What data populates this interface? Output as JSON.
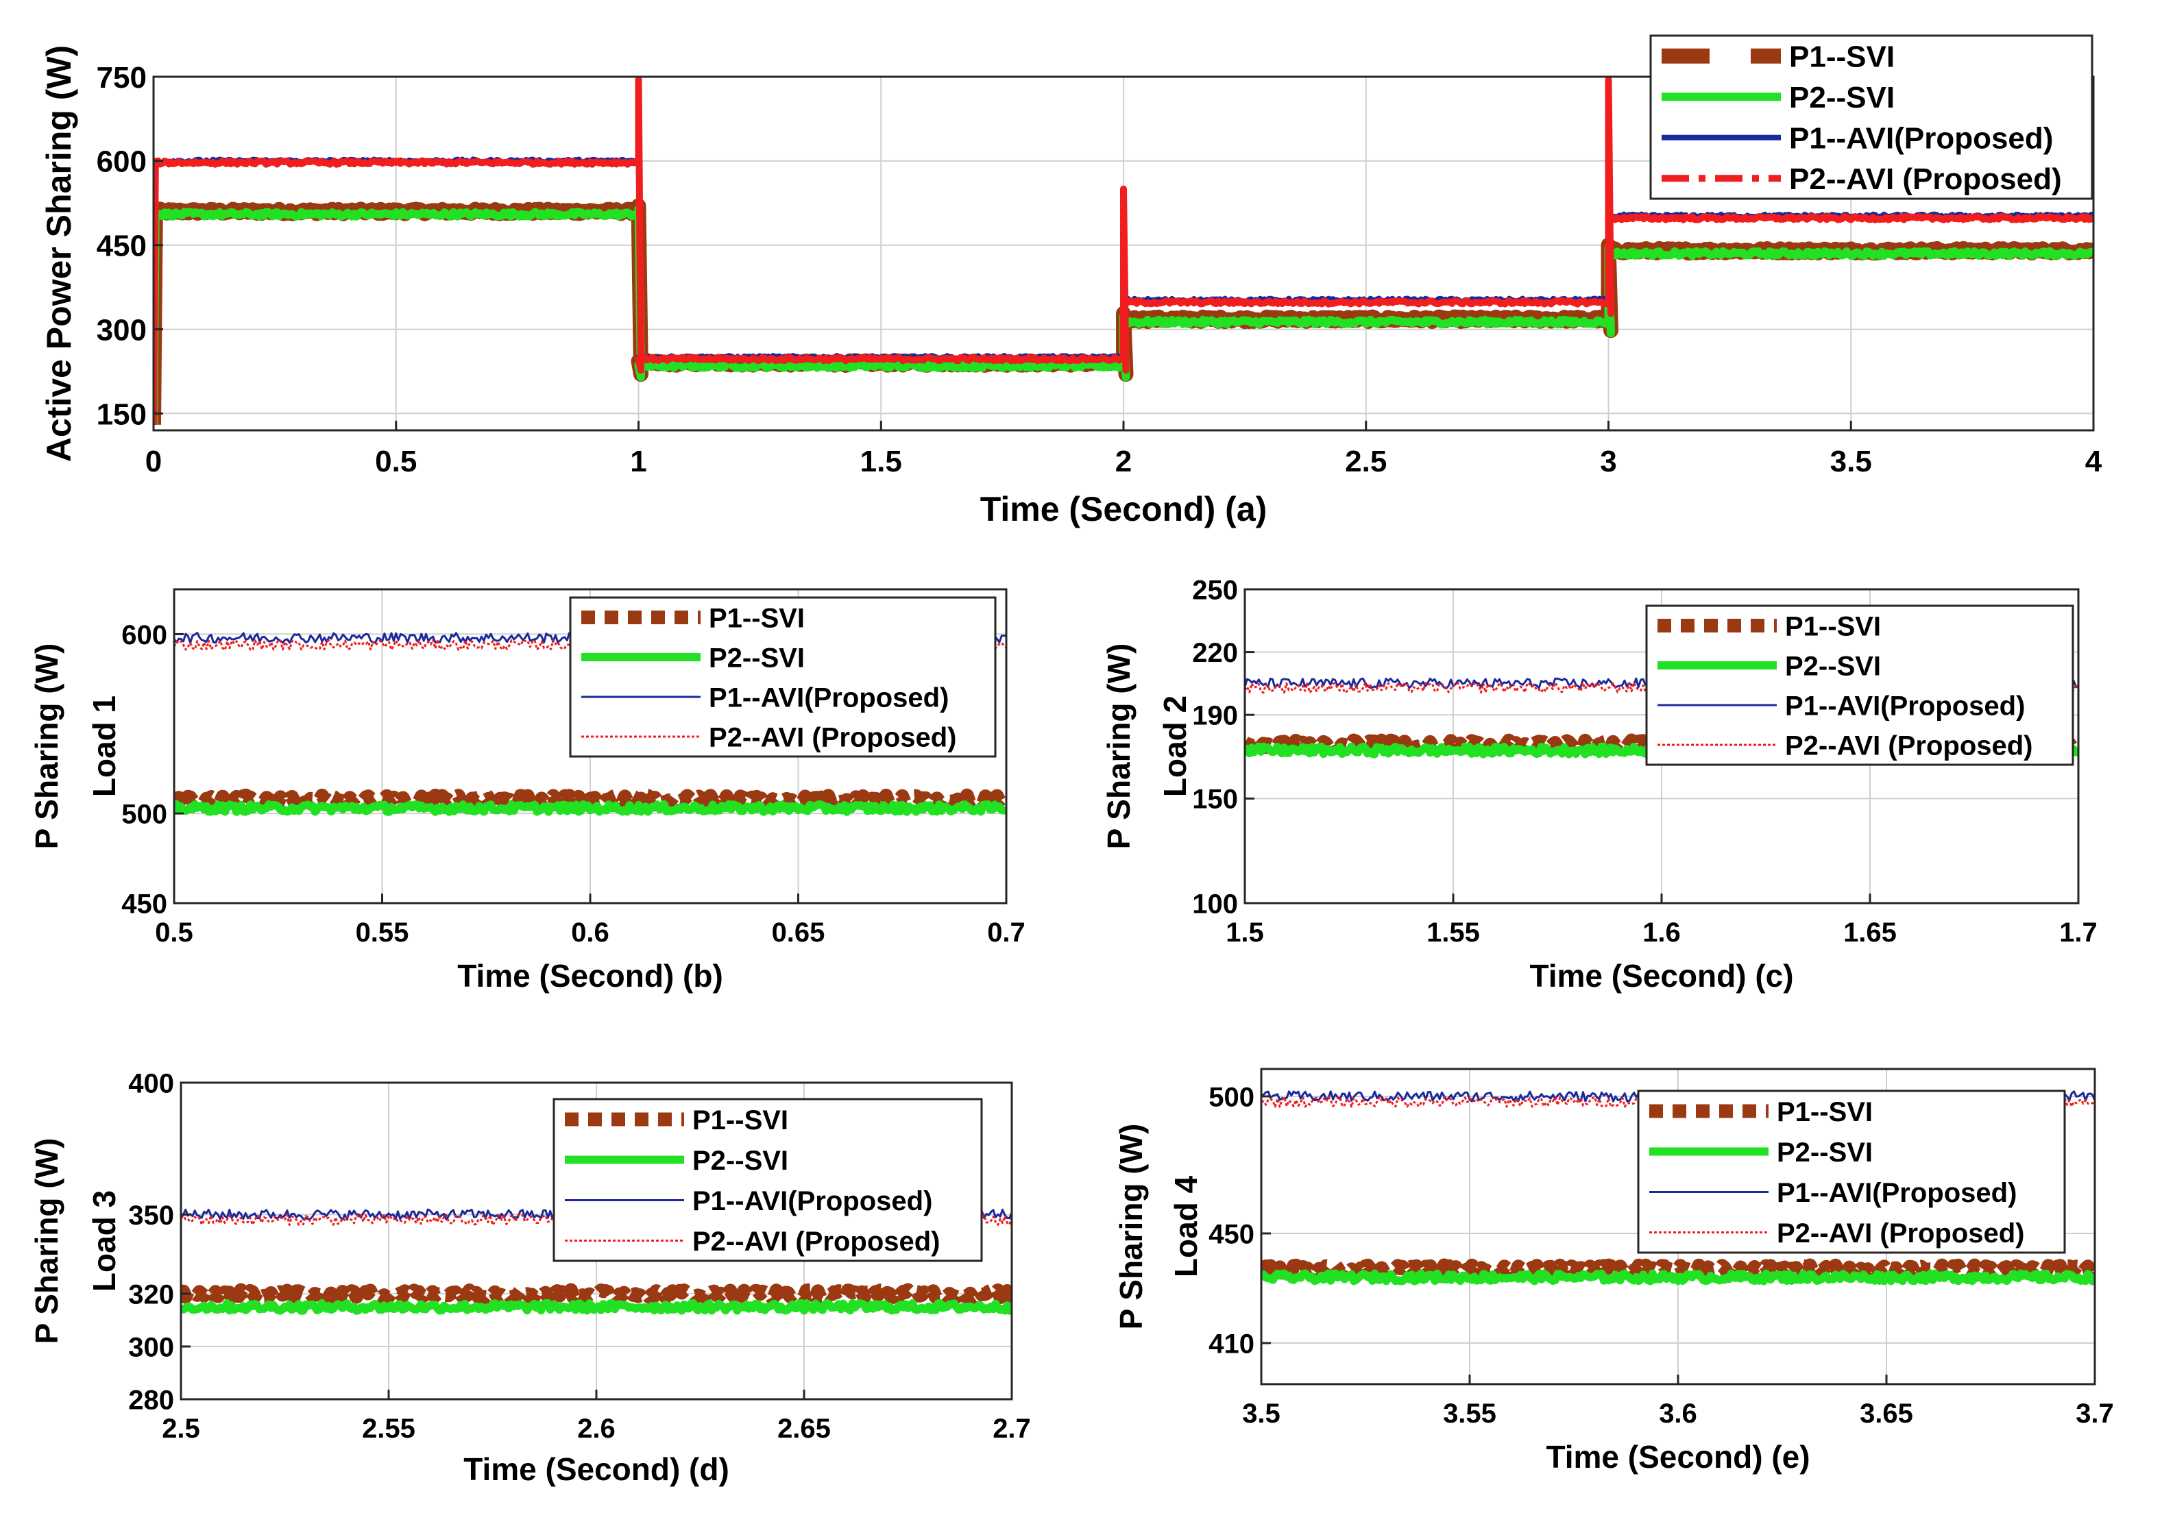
{
  "chart_data": [
    {
      "id": "a",
      "type": "line",
      "xlabel": "Time (Second) (a)",
      "ylabel": [
        "Active Power Sharing (W)"
      ],
      "xlim": [
        0,
        4
      ],
      "ylim": [
        120,
        750
      ],
      "xticks": [
        0,
        0.5,
        1,
        1.5,
        2,
        2.5,
        3,
        3.5,
        4
      ],
      "xtick_labels": [
        "0",
        "0.5",
        "1",
        "1.5",
        "2",
        "2.5",
        "3",
        "3.5",
        "4"
      ],
      "yticks": [
        150,
        300,
        450,
        600,
        750
      ],
      "ytick_labels": [
        "150",
        "300",
        "450",
        "600",
        "750"
      ],
      "grid": true,
      "legend_position": "top-right",
      "series": [
        {
          "name": "P1--SVI",
          "color": "#9B3A12",
          "style": "dashed-thick",
          "segments": [
            [
              0,
              1,
              510
            ],
            [
              1,
              2,
              240
            ],
            [
              2,
              3,
              318
            ],
            [
              3,
              4,
              440
            ]
          ]
        },
        {
          "name": "P2--SVI",
          "color": "#22E022",
          "style": "solid-thick",
          "segments": [
            [
              0,
              1,
              505
            ],
            [
              1,
              2,
              235
            ],
            [
              2,
              3,
              313
            ],
            [
              3,
              4,
              435
            ]
          ]
        },
        {
          "name": "P1--AVI(Proposed)",
          "color": "#1A2A9C",
          "style": "solid",
          "segments": [
            [
              0,
              1,
              600
            ],
            [
              1,
              2,
              250
            ],
            [
              2,
              3,
              352
            ],
            [
              3,
              4,
              502
            ]
          ]
        },
        {
          "name": "P2--AVI (Proposed)",
          "color": "#F01E1E",
          "style": "dash-dot",
          "segments": [
            [
              0,
              1,
              597
            ],
            [
              1,
              2,
              247
            ],
            [
              2,
              3,
              348
            ],
            [
              3,
              4,
              498
            ]
          ]
        }
      ]
    },
    {
      "id": "b",
      "type": "line",
      "xlabel": "Time (Second) (b)",
      "ylabel": [
        "P Sharing (W)",
        "Load 1"
      ],
      "xlim": [
        0.5,
        0.7
      ],
      "ylim": [
        450,
        625
      ],
      "xticks": [
        0.5,
        0.55,
        0.6,
        0.65,
        0.7
      ],
      "xtick_labels": [
        "0.5",
        "0.55",
        "0.6",
        "0.65",
        "0.7"
      ],
      "yticks": [
        450,
        500,
        600
      ],
      "ytick_labels": [
        "450",
        "500",
        "600"
      ],
      "grid": true,
      "legend_position": "top-right",
      "series": [
        {
          "name": "P1--SVI",
          "color": "#9B3A12",
          "style": "dotted-thick",
          "level": 508
        },
        {
          "name": "P2--SVI",
          "color": "#22E022",
          "style": "solid-thick",
          "level": 503
        },
        {
          "name": "P1--AVI(Proposed)",
          "color": "#1A2A9C",
          "style": "thin",
          "level": 598
        },
        {
          "name": "P2--AVI (Proposed)",
          "color": "#F01E1E",
          "style": "thin-dotted",
          "level": 594
        }
      ]
    },
    {
      "id": "c",
      "type": "line",
      "xlabel": "Time (Second) (c)",
      "ylabel": [
        "P Sharing (W)",
        "Load 2"
      ],
      "xlim": [
        1.5,
        1.7
      ],
      "ylim": [
        100,
        250
      ],
      "xticks": [
        1.5,
        1.55,
        1.6,
        1.65,
        1.7
      ],
      "xtick_labels": [
        "1.5",
        "1.55",
        "1.6",
        "1.65",
        "1.7"
      ],
      "yticks": [
        100,
        150,
        190,
        220,
        250
      ],
      "ytick_labels": [
        "100",
        "150",
        "190",
        "220",
        "250"
      ],
      "grid": true,
      "legend_position": "top-right",
      "series": [
        {
          "name": "P1--SVI",
          "color": "#9B3A12",
          "style": "dotted-thick",
          "level": 176
        },
        {
          "name": "P2--SVI",
          "color": "#22E022",
          "style": "solid-thick",
          "level": 173
        },
        {
          "name": "P1--AVI(Proposed)",
          "color": "#1A2A9C",
          "style": "thin",
          "level": 205
        },
        {
          "name": "P2--AVI (Proposed)",
          "color": "#F01E1E",
          "style": "thin-dotted",
          "level": 203
        }
      ]
    },
    {
      "id": "d",
      "type": "line",
      "xlabel": "Time (Second) (d)",
      "ylabel": [
        "P Sharing (W)",
        "Load 3"
      ],
      "xlim": [
        2.5,
        2.7
      ],
      "ylim": [
        280,
        400
      ],
      "xticks": [
        2.5,
        2.55,
        2.6,
        2.65,
        2.7
      ],
      "xtick_labels": [
        "2.5",
        "2.55",
        "2.6",
        "2.65",
        "2.7"
      ],
      "yticks": [
        280,
        300,
        320,
        350,
        400
      ],
      "ytick_labels": [
        "280",
        "300",
        "320",
        "350",
        "400"
      ],
      "grid": true,
      "legend_position": "top-right",
      "series": [
        {
          "name": "P1--SVI",
          "color": "#9B3A12",
          "style": "dotted-thick",
          "level": 320
        },
        {
          "name": "P2--SVI",
          "color": "#22E022",
          "style": "solid-thick",
          "level": 315
        },
        {
          "name": "P1--AVI(Proposed)",
          "color": "#1A2A9C",
          "style": "thin",
          "level": 350
        },
        {
          "name": "P2--AVI (Proposed)",
          "color": "#F01E1E",
          "style": "thin-dotted",
          "level": 348
        }
      ]
    },
    {
      "id": "e",
      "type": "line",
      "xlabel": "Time (Second) (e)",
      "ylabel": [
        "P Sharing (W)",
        "Load 4"
      ],
      "xlim": [
        3.5,
        3.7
      ],
      "ylim": [
        395,
        510
      ],
      "xticks": [
        3.5,
        3.55,
        3.6,
        3.65,
        3.7
      ],
      "xtick_labels": [
        "3.5",
        "3.55",
        "3.6",
        "3.65",
        "3.7"
      ],
      "yticks": [
        410,
        450,
        500
      ],
      "ytick_labels": [
        "410",
        "450",
        "500"
      ],
      "grid": true,
      "legend_position": "top-right",
      "series": [
        {
          "name": "P1--SVI",
          "color": "#9B3A12",
          "style": "dotted-thick",
          "level": 437
        },
        {
          "name": "P2--SVI",
          "color": "#22E022",
          "style": "solid-thick",
          "level": 434
        },
        {
          "name": "P1--AVI(Proposed)",
          "color": "#1A2A9C",
          "style": "thin",
          "level": 500
        },
        {
          "name": "P2--AVI (Proposed)",
          "color": "#F01E1E",
          "style": "thin-dotted",
          "level": 498
        }
      ]
    }
  ]
}
